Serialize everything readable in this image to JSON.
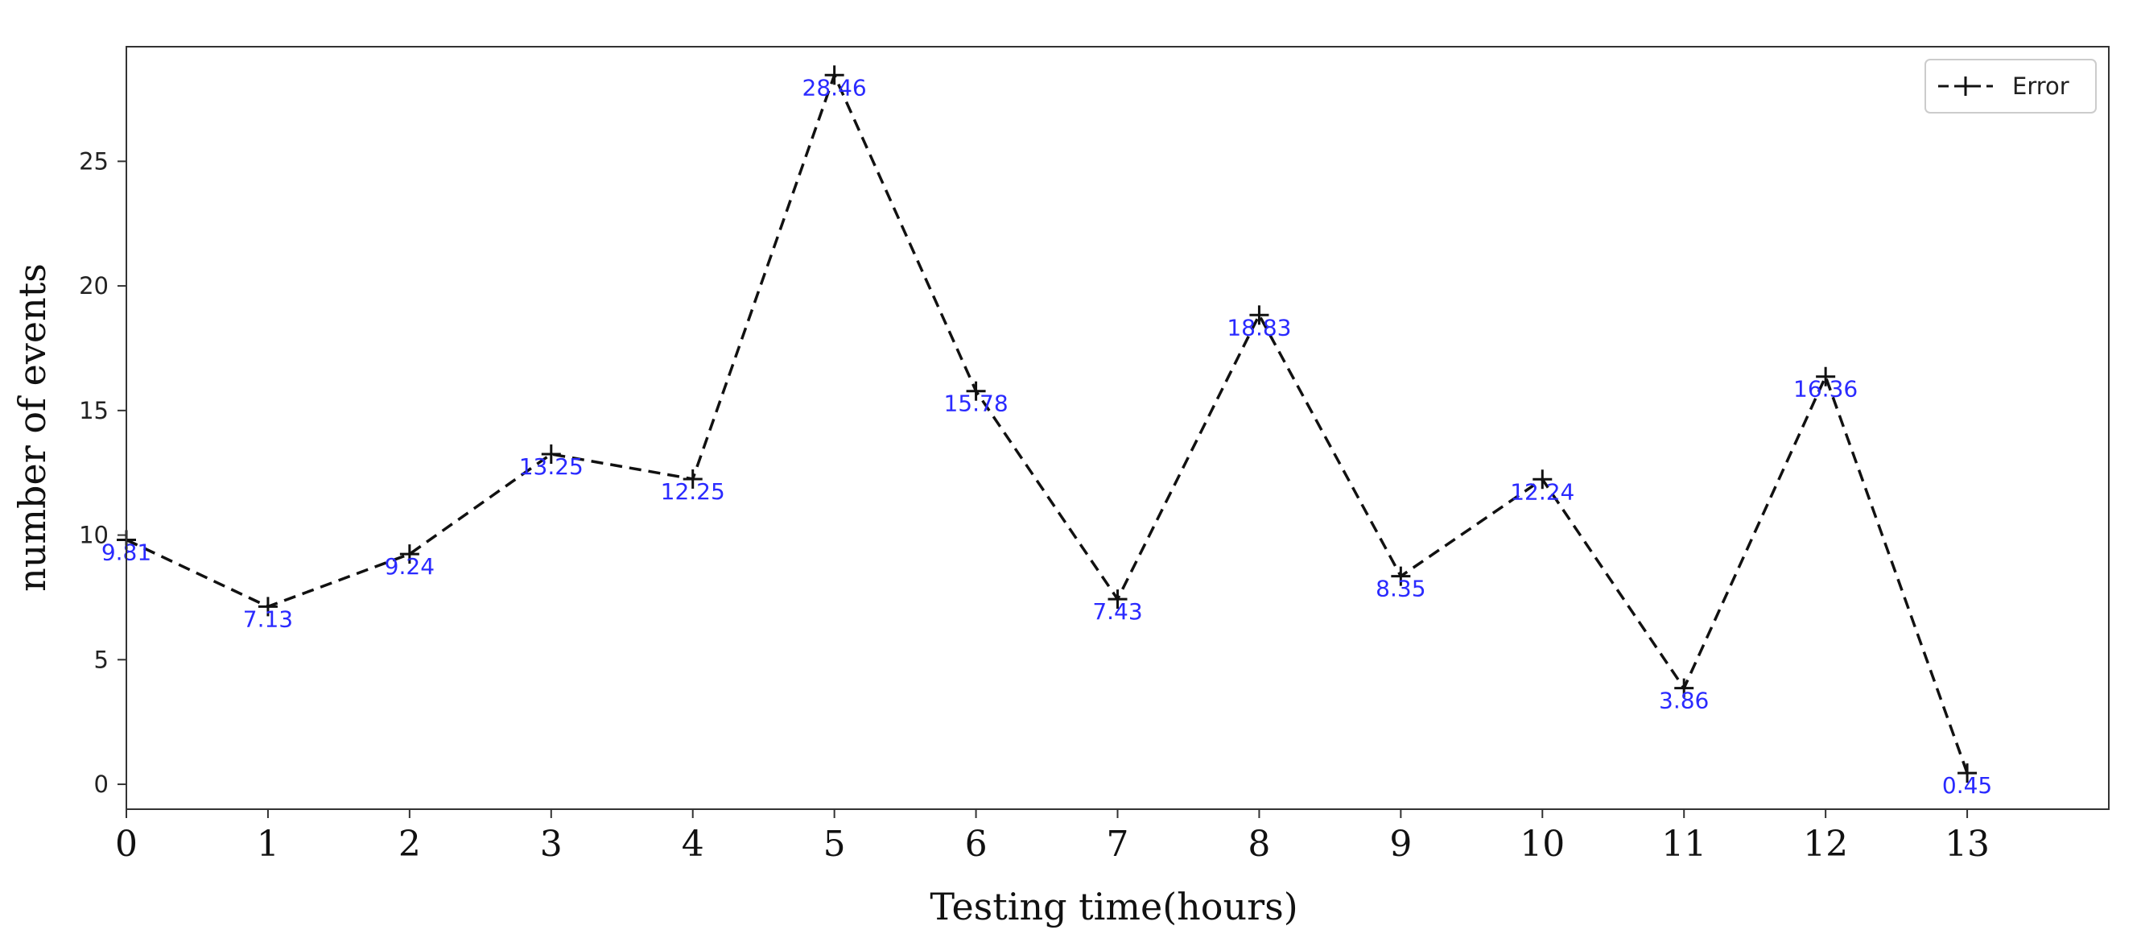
{
  "chart_data": {
    "type": "line",
    "title": "",
    "xlabel": "Testing time(hours)",
    "ylabel": "number of events",
    "x": [
      0,
      1,
      2,
      3,
      4,
      5,
      6,
      7,
      8,
      9,
      10,
      11,
      12,
      13
    ],
    "xlim": [
      0,
      14
    ],
    "ylim": [
      -1,
      29.6
    ],
    "xticks": [
      0,
      1,
      2,
      3,
      4,
      5,
      6,
      7,
      8,
      9,
      10,
      11,
      12,
      13
    ],
    "xtick_labels": [
      "0",
      "1",
      "2",
      "3",
      "4",
      "5",
      "6",
      "7",
      "8",
      "9",
      "10",
      "11",
      "12",
      "13"
    ],
    "yticks": [
      0,
      5,
      10,
      15,
      20,
      25
    ],
    "ytick_labels": [
      "0",
      "5",
      "10",
      "15",
      "20",
      "25"
    ],
    "grid": false,
    "legend_position": "top-right",
    "series": [
      {
        "name": "Error",
        "values": [
          9.81,
          7.13,
          9.24,
          13.25,
          12.25,
          28.46,
          15.78,
          7.43,
          18.83,
          8.35,
          12.24,
          3.86,
          16.36,
          0.45
        ],
        "data_labels": [
          "9.81",
          "7.13",
          "9.24",
          "13.25",
          "12.25",
          "28.46",
          "15.78",
          "7.43",
          "18.83",
          "8.35",
          "12.24",
          "3.86",
          "16.36",
          "0.45"
        ],
        "line_style": "dashed",
        "marker": "+",
        "color": "#111111",
        "label_color": "#2a2aff"
      }
    ]
  }
}
